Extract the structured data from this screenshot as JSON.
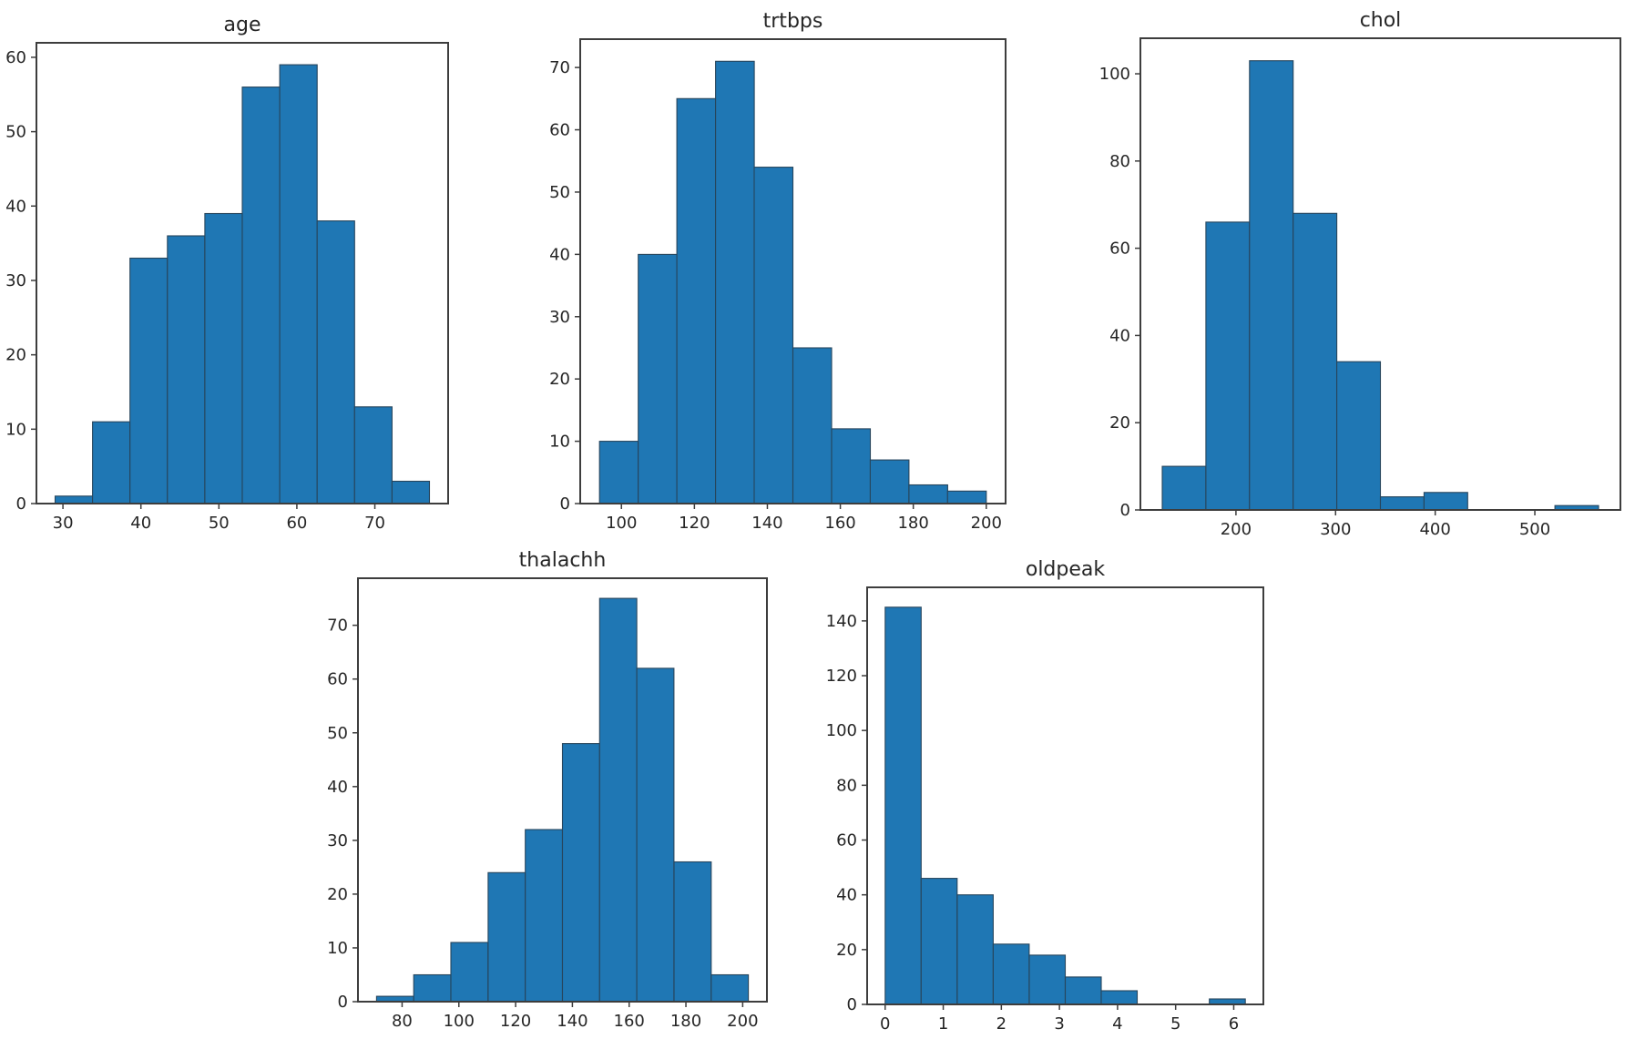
{
  "figure": {
    "kind": "matplotlib-histogram-grid",
    "rows": 2,
    "plots_count": 5
  },
  "colors": {
    "background": "#ffffff",
    "bar_fill": "#1f77b4",
    "bar_edge": "#27455c",
    "axis": "#3d3d3d",
    "text": "#262626"
  },
  "chart_data": [
    {
      "id": "age",
      "type": "bar",
      "chart_kind": "histogram",
      "title": "age",
      "xlabel": "",
      "ylabel": "",
      "bin_edges": [
        29.0,
        33.8,
        38.6,
        43.4,
        48.2,
        53.0,
        57.8,
        62.6,
        67.4,
        72.2,
        77.0
      ],
      "values": [
        1,
        11,
        33,
        36,
        39,
        56,
        59,
        38,
        13,
        3
      ],
      "xticks": [
        30,
        40,
        50,
        60,
        70
      ],
      "yticks": [
        0,
        10,
        20,
        30,
        40,
        50,
        60
      ],
      "xlim": [
        26.6,
        79.4
      ],
      "ylim": [
        0,
        61.95
      ],
      "grid": false,
      "legend": null
    },
    {
      "id": "trtbps",
      "type": "bar",
      "chart_kind": "histogram",
      "title": "trtbps",
      "xlabel": "",
      "ylabel": "",
      "bin_edges": [
        94.0,
        104.6,
        115.2,
        125.8,
        136.4,
        147.0,
        157.6,
        168.2,
        178.8,
        189.4,
        200.0
      ],
      "values": [
        10,
        40,
        65,
        71,
        54,
        25,
        12,
        7,
        3,
        2
      ],
      "xticks": [
        100,
        120,
        140,
        160,
        180,
        200
      ],
      "yticks": [
        0,
        10,
        20,
        30,
        40,
        50,
        60,
        70
      ],
      "xlim": [
        88.7,
        205.3
      ],
      "ylim": [
        0,
        74.55
      ],
      "grid": false,
      "legend": null
    },
    {
      "id": "chol",
      "type": "bar",
      "chart_kind": "histogram",
      "title": "chol",
      "xlabel": "",
      "ylabel": "",
      "bin_edges": [
        126.0,
        169.8,
        213.6,
        257.4,
        301.2,
        345.0,
        388.8,
        432.6,
        476.4,
        520.2,
        564.0
      ],
      "values": [
        10,
        66,
        103,
        68,
        34,
        3,
        4,
        0,
        0,
        1
      ],
      "xticks": [
        200,
        300,
        400,
        500
      ],
      "yticks": [
        0,
        20,
        40,
        60,
        80,
        100
      ],
      "xlim": [
        104.1,
        585.9
      ],
      "ylim": [
        0,
        108.15
      ],
      "grid": false,
      "legend": null
    },
    {
      "id": "thalachh",
      "type": "bar",
      "chart_kind": "histogram",
      "title": "thalachh",
      "xlabel": "",
      "ylabel": "",
      "bin_edges": [
        71.0,
        84.1,
        97.2,
        110.3,
        123.4,
        136.5,
        149.6,
        162.7,
        175.8,
        188.9,
        202.0
      ],
      "values": [
        1,
        5,
        11,
        24,
        32,
        48,
        75,
        62,
        26,
        5
      ],
      "xticks": [
        80,
        100,
        120,
        140,
        160,
        180,
        200
      ],
      "yticks": [
        0,
        10,
        20,
        30,
        40,
        50,
        60,
        70
      ],
      "xlim": [
        64.45,
        208.55
      ],
      "ylim": [
        0,
        78.75
      ],
      "grid": false,
      "legend": null
    },
    {
      "id": "oldpeak",
      "type": "bar",
      "chart_kind": "histogram",
      "title": "oldpeak",
      "xlabel": "",
      "ylabel": "",
      "bin_edges": [
        0.0,
        0.62,
        1.24,
        1.86,
        2.48,
        3.1,
        3.72,
        4.34,
        4.96,
        5.58,
        6.2
      ],
      "values": [
        145,
        46,
        40,
        22,
        18,
        10,
        5,
        0,
        0,
        2
      ],
      "xticks": [
        0,
        1,
        2,
        3,
        4,
        5,
        6
      ],
      "yticks": [
        0,
        20,
        40,
        60,
        80,
        100,
        120,
        140
      ],
      "xlim": [
        -0.31,
        6.51
      ],
      "ylim": [
        0,
        152.25
      ],
      "grid": false,
      "legend": null
    }
  ]
}
